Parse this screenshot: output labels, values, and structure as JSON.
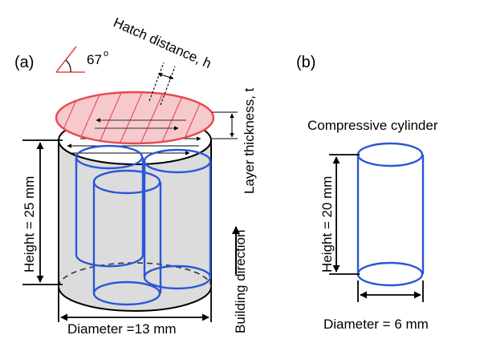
{
  "panel_a": {
    "label": "(a)",
    "angle": "67",
    "degree_symbol": "o",
    "hatch_distance": "Hatch distance, h",
    "layer_thickness": "Layer thickness, t",
    "height": "Height = 25 mm",
    "diameter": "Diameter =13 mm",
    "building_direction": "Building direction"
  },
  "panel_b": {
    "label": "(b)",
    "title": "Compressive cylinder",
    "height": "Height = 20 mm",
    "diameter": "Diameter = 6 mm"
  },
  "colors": {
    "scan_red": "#e8474f",
    "scan_fill": "#f6c9cd",
    "specimen_blue": "#2a57d6",
    "body_gray": "#dcdcdc",
    "outline": "#000000"
  }
}
